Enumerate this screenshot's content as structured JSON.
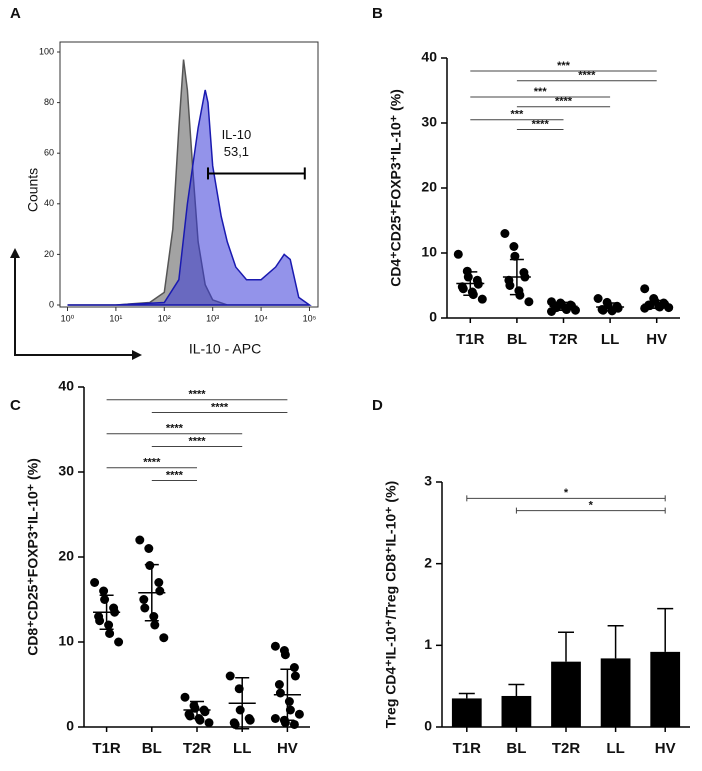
{
  "chart_data": [
    {
      "type": "line",
      "label": "A",
      "xlabel": "IL-10 - APC",
      "ylabel": "Counts",
      "xscale": "log",
      "xlim": [
        0.7,
        150000
      ],
      "ylim": [
        0,
        100
      ],
      "xticks": [
        {
          "value": 1,
          "label": "10⁰"
        },
        {
          "value": 10,
          "label": "10¹"
        },
        {
          "value": 100,
          "label": "10²"
        },
        {
          "value": 1000,
          "label": "10³"
        },
        {
          "value": 10000,
          "label": "10⁴"
        },
        {
          "value": 100000,
          "label": "10⁵"
        }
      ],
      "yticks": [
        0,
        20,
        40,
        60,
        80,
        100
      ],
      "series": [
        {
          "color": "#8c8c8c",
          "x": [
            1,
            10,
            50,
            100,
            150,
            200,
            250,
            300,
            400,
            500,
            700,
            1000,
            2000,
            5000,
            100000
          ],
          "values": [
            0,
            0,
            1,
            5,
            30,
            70,
            97,
            85,
            50,
            25,
            8,
            2,
            0,
            0,
            0
          ]
        },
        {
          "color": "#3a3ad8",
          "x": [
            1,
            10,
            100,
            200,
            300,
            500,
            700,
            800,
            1000,
            1500,
            2000,
            3000,
            5000,
            10000,
            20000,
            30000,
            40000,
            60000,
            100000
          ],
          "values": [
            0,
            0,
            1,
            10,
            40,
            70,
            85,
            80,
            55,
            35,
            25,
            15,
            10,
            10,
            15,
            20,
            18,
            3,
            0
          ]
        }
      ],
      "gate": {
        "x": [
          800,
          80000
        ],
        "y": 52
      },
      "annotations": [
        "IL-10",
        "53,1"
      ]
    },
    {
      "type": "dot",
      "label": "B",
      "ylabel": "CD4⁺CD25⁺FOXP3⁺IL-10⁺ (%)",
      "categories": [
        "T1R",
        "BL",
        "T2R",
        "LL",
        "HV"
      ],
      "ylim": [
        0,
        40
      ],
      "yticks": [
        0,
        10,
        20,
        30,
        40
      ],
      "points": [
        [
          9.8,
          7.2,
          6.3,
          5.8,
          5.2,
          4.8,
          4.5,
          4.0,
          3.6,
          2.9
        ],
        [
          13,
          11,
          9.5,
          7,
          6.3,
          5.8,
          5,
          4.2,
          3.5,
          2.5
        ],
        [
          2.5,
          2.3,
          2.1,
          2,
          1.9,
          1.8,
          1.6,
          1.5,
          1.3,
          1.2,
          1
        ],
        [
          3,
          2.4,
          2,
          1.8,
          1.5,
          1.3,
          1.2,
          1.1
        ],
        [
          4.5,
          3,
          2.6,
          2.3,
          2.1,
          2,
          1.9,
          1.8,
          1.7,
          1.6,
          1.5
        ]
      ],
      "means": [
        5.3,
        6.3,
        1.8,
        1.7,
        2.1
      ],
      "sd": [
        1.8,
        2.7,
        0.6,
        0.6,
        0.6
      ],
      "brackets": [
        {
          "from": "T1R",
          "to": "HV",
          "y": 38,
          "label": "***"
        },
        {
          "from": "BL",
          "to": "HV",
          "y": 36.5,
          "label": "****"
        },
        {
          "from": "T1R",
          "to": "LL",
          "y": 34,
          "label": "***"
        },
        {
          "from": "BL",
          "to": "LL",
          "y": 32.5,
          "label": "****"
        },
        {
          "from": "T1R",
          "to": "T2R",
          "y": 30.5,
          "label": "***"
        },
        {
          "from": "BL",
          "to": "T2R",
          "y": 29,
          "label": "****"
        }
      ]
    },
    {
      "type": "dot",
      "label": "C",
      "ylabel": "CD8⁺CD25⁺FOXP3⁺IL-10⁺ (%)",
      "categories": [
        "T1R",
        "BL",
        "T2R",
        "LL",
        "HV"
      ],
      "ylim": [
        0,
        40
      ],
      "yticks": [
        0,
        10,
        20,
        30,
        40
      ],
      "points": [
        [
          17,
          16,
          15,
          14,
          13.5,
          13,
          12.5,
          12,
          11,
          10
        ],
        [
          22,
          21,
          19,
          17,
          16,
          15,
          14,
          13,
          12,
          10.5
        ],
        [
          3.5,
          2.5,
          2.2,
          2,
          1.8,
          1.5,
          1.3,
          1,
          0.8,
          0.5
        ],
        [
          6,
          4.5,
          2,
          1,
          0.8,
          0.5,
          0.3
        ],
        [
          9.5,
          9,
          8.5,
          7,
          6,
          5,
          4,
          3,
          2,
          1.5,
          1,
          0.8,
          0.5,
          0.3
        ]
      ],
      "means": [
        13.5,
        15.8,
        2,
        2.8,
        3.8
      ],
      "sd": [
        2,
        3.3,
        1,
        3,
        3
      ],
      "brackets": [
        {
          "from": "T1R",
          "to": "HV",
          "y": 38.5,
          "label": "****"
        },
        {
          "from": "BL",
          "to": "HV",
          "y": 37,
          "label": "****"
        },
        {
          "from": "T1R",
          "to": "LL",
          "y": 34.5,
          "label": "****"
        },
        {
          "from": "BL",
          "to": "LL",
          "y": 33,
          "label": "****"
        },
        {
          "from": "T1R",
          "to": "T2R",
          "y": 30.5,
          "label": "****"
        },
        {
          "from": "BL",
          "to": "T2R",
          "y": 29,
          "label": "****"
        }
      ]
    },
    {
      "type": "bar",
      "label": "D",
      "ylabel": "Treg CD4⁺IL-10⁺/Treg CD8⁺IL-10⁺ (%)",
      "color": "#000000",
      "categories": [
        "T1R",
        "BL",
        "T2R",
        "LL",
        "HV"
      ],
      "ylim": [
        0,
        3
      ],
      "yticks": [
        0,
        1,
        2,
        3
      ],
      "values": [
        0.35,
        0.38,
        0.8,
        0.84,
        0.92
      ],
      "errors": [
        0.06,
        0.14,
        0.36,
        0.4,
        0.53
      ],
      "brackets": [
        {
          "from": "T1R",
          "to": "HV",
          "y": 2.8,
          "label": "*"
        },
        {
          "from": "BL",
          "to": "HV",
          "y": 2.65,
          "label": "*"
        }
      ]
    }
  ]
}
